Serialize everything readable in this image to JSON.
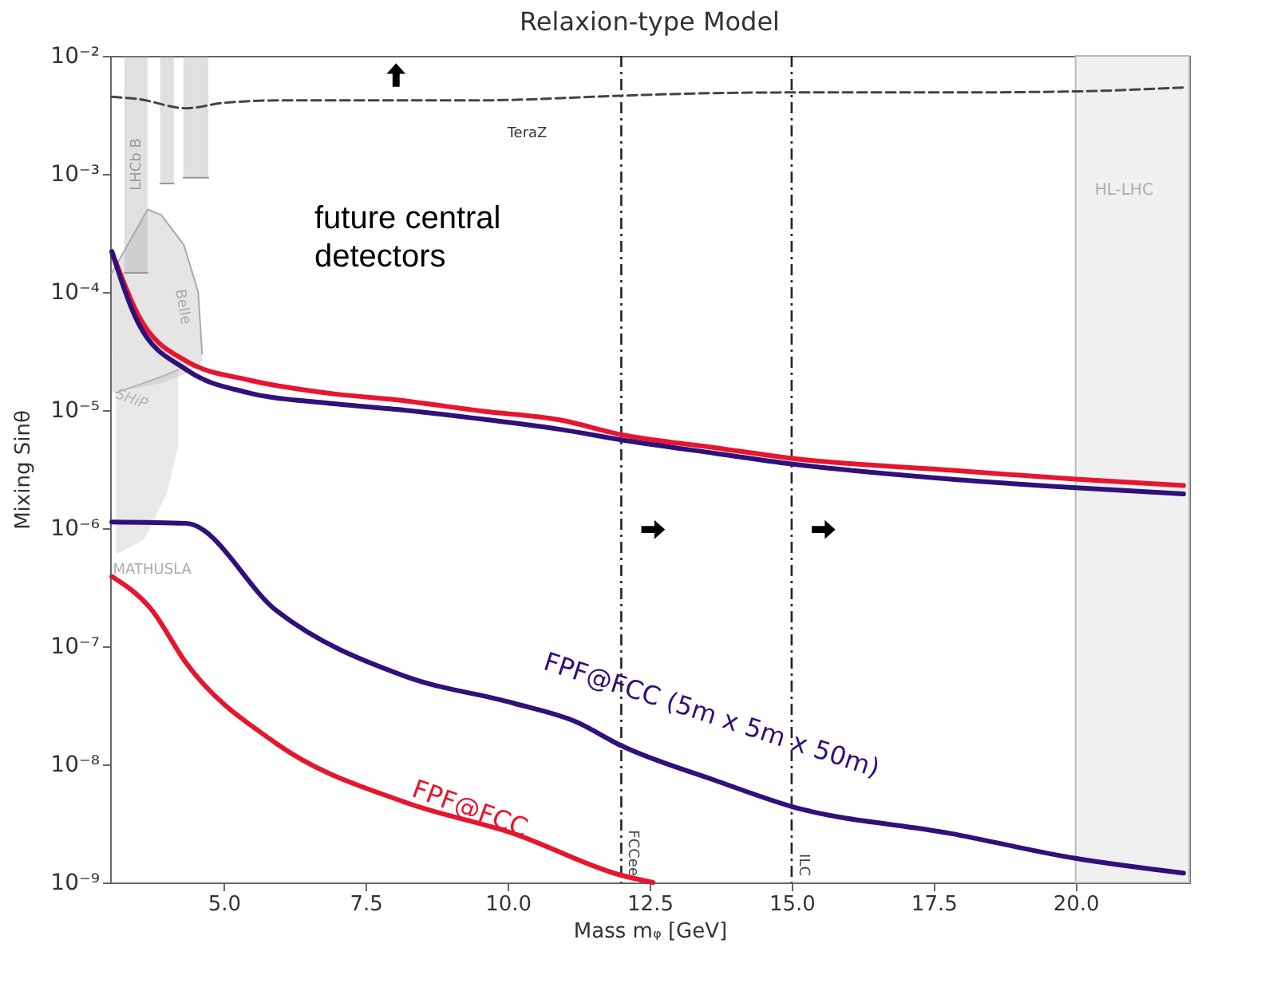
{
  "chart_data": {
    "type": "line",
    "title": "Relaxion-type Model",
    "xlabel": "Mass mᵩ [GeV]",
    "ylabel": "Mixing  Sinθ",
    "xlim": [
      3,
      22
    ],
    "xticks": [
      {
        "value": 5,
        "label": "5.0"
      },
      7.5,
      {
        "value": 10,
        "label": "10.0"
      },
      12.5,
      {
        "value": 15,
        "label": "15.0"
      },
      17.5,
      {
        "value": 20,
        "label": "20.0"
      }
    ],
    "ylim": [
      1e-09,
      0.01
    ],
    "yticks": [
      {
        "value": 1e-09,
        "label": "10⁻⁹"
      },
      {
        "value": 1e-08,
        "label": "10⁻⁸"
      },
      {
        "value": 1e-07,
        "label": "10⁻⁷"
      },
      {
        "value": 1e-06,
        "label": "10⁻⁶"
      },
      {
        "value": 1e-05,
        "label": "10⁻⁵"
      },
      {
        "value": 0.0001,
        "label": "10⁻⁴"
      },
      {
        "value": 0.001,
        "label": "10⁻³"
      },
      {
        "value": 0.01,
        "label": "10⁻²"
      }
    ],
    "log": "y",
    "grid": false,
    "series": [
      {
        "name": "LHCb B",
        "color": "#999999",
        "x": [
          3.25,
          3.66
        ],
        "values": [
          0.000145,
          0.000145
        ],
        "upper": [
          0.01,
          0.01
        ],
        "lower": [
          0.000145,
          0.000145
        ]
      },
      {
        "color": "#999999",
        "x": [
          3.88,
          4.12
        ],
        "values": [
          0.00083,
          0.00083
        ],
        "upper": [
          0.01,
          0.01
        ],
        "lower": [
          0.00083,
          0.00083
        ]
      },
      {
        "color": "#999999",
        "x": [
          4.29,
          4.73
        ],
        "values": [
          0.00093,
          0.00093
        ],
        "upper": [
          0.01,
          0.01
        ],
        "lower": [
          0.00093,
          0.00093
        ]
      },
      {
        "name": "Belle",
        "color": "#aaaaaa",
        "x": [
          3.03,
          3.66,
          3.9,
          4.3,
          4.55,
          4.62
        ],
        "values": [
          0.000145,
          0.0005,
          0.00045,
          0.00025,
          0.0001,
          3e-05
        ],
        "upper": [
          0.000145,
          0.0005,
          0.00045,
          0.00025,
          0.0001,
          3e-05
        ],
        "lower": [
          1.4e-05,
          1.6e-05,
          1.7e-05,
          2e-05,
          2.4e-05,
          2.6e-05
        ]
      },
      {
        "name": "SHiP",
        "color": "#b4b4b4",
        "x": [
          3.1,
          3.6,
          4.0,
          4.2
        ],
        "values": [
          1.4e-05,
          1.7e-05,
          2e-05,
          2.2e-05
        ],
        "upper": [
          1.4e-05,
          1.7e-05,
          2e-05,
          2.2e-05
        ],
        "lower": [
          6e-07,
          8e-07,
          2e-06,
          5e-06
        ]
      },
      {
        "name": "TeraZ",
        "color": "#444444",
        "line_style": "dashed",
        "x": [
          3.03,
          3.5,
          4.34,
          5,
          6,
          9.5,
          11.5,
          12,
          15,
          17.8,
          20,
          21.9
        ],
        "values": [
          0.0045,
          0.0043,
          0.0036,
          0.004,
          0.0042,
          0.0042,
          0.0045,
          0.0046,
          0.0049,
          0.0049,
          0.005,
          0.0054
        ]
      },
      {
        "color": "#e6162f",
        "x": [
          3.03,
          3.5,
          4.34,
          5.44,
          6.8,
          8.18,
          9.55,
          10.9,
          12,
          13.66,
          15,
          17.8,
          20,
          21.9
        ],
        "values": [
          0.00022,
          6.3e-05,
          2.6e-05,
          1.8e-05,
          1.4e-05,
          1.2e-05,
          9.8e-06,
          8.3e-06,
          6.2e-06,
          4.8e-06,
          3.9e-06,
          3.1e-06,
          2.6e-06,
          2.3e-06
        ]
      },
      {
        "color": "#30107a",
        "x": [
          3.03,
          3.5,
          4.34,
          5.44,
          6.8,
          8.18,
          9.55,
          10.9,
          12,
          13.66,
          15,
          17.8,
          20,
          21.9
        ],
        "values": [
          0.00022,
          5.4e-05,
          2.2e-05,
          1.4e-05,
          1.15e-05,
          1e-05,
          8.4e-06,
          6.9e-06,
          5.6e-06,
          4.3e-06,
          3.5e-06,
          2.6e-06,
          2.2e-06,
          1.95e-06
        ]
      },
      {
        "name": "FPF@FCC",
        "color": "#e6162f",
        "x": [
          3.03,
          3.71,
          4.34,
          5.93,
          8.18,
          10.1,
          12,
          12.56
        ],
        "values": [
          3.9e-07,
          2.1e-07,
          7.2e-08,
          1.5e-08,
          4.8e-09,
          2.6e-09,
          1.15e-09,
          1e-09
        ]
      },
      {
        "name": "FPF@FCC (5m x 5m x 50m)",
        "color": "#30107a",
        "x": [
          3.03,
          4.34,
          5.93,
          8.18,
          10.1,
          11.2,
          12,
          13.66,
          15,
          17.8,
          20,
          21.9
        ],
        "values": [
          1.13e-06,
          1.1e-06,
          2e-07,
          5.6e-08,
          3.3e-08,
          2.3e-08,
          1.44e-08,
          7.3e-09,
          4.4e-09,
          2.6e-09,
          1.6e-09,
          1.2e-09
        ]
      }
    ],
    "ref_lines": [
      {
        "axis": "x",
        "value": 12,
        "label": "FCCee",
        "line_style": "dashdot",
        "color": "#222222"
      },
      {
        "axis": "x",
        "value": 15,
        "label": "ILC",
        "line_style": "dashdot",
        "color": "#222222"
      }
    ],
    "bands": [
      {
        "axis": "x",
        "from": 20,
        "to": 22,
        "label": "HL-LHC",
        "color": "#f0f0f0"
      }
    ],
    "annotations": [
      "future central detectors",
      {
        "text": "MATHUSLA",
        "x": 3.05,
        "y": 4.5e-07
      }
    ]
  }
}
